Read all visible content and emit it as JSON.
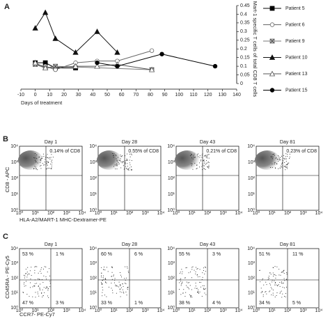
{
  "chart_data": {
    "type": "line",
    "x_label": "Days of treatment",
    "y_label": "% Mart-1 specific T cells of total CD8 T cells",
    "y_axis_side": "right",
    "xlim": [
      -10,
      140
    ],
    "xticks": [
      -10,
      0,
      10,
      20,
      30,
      40,
      50,
      60,
      70,
      80,
      90,
      100,
      110,
      120,
      130,
      140
    ],
    "ylim": [
      0,
      0.45
    ],
    "yticks": [
      0,
      0.05,
      0.1,
      0.15,
      0.2,
      0.25,
      0.3,
      0.35,
      0.4,
      0.45
    ],
    "series": [
      {
        "name": "Patient 5",
        "color": "#000000",
        "marker": "square-filled",
        "x": [
          0,
          7,
          14,
          28
        ],
        "values": [
          0.12,
          0.12,
          0.09,
          0.09
        ]
      },
      {
        "name": "Patient 6",
        "color": "#666666",
        "marker": "circle-open",
        "x": [
          0,
          7,
          14,
          28,
          43,
          57,
          81
        ],
        "values": [
          0.11,
          0.1,
          0.08,
          0.12,
          0.13,
          0.13,
          0.19
        ]
      },
      {
        "name": "Patient 9",
        "color": "#777777",
        "marker": "square-x",
        "x": [
          0,
          7,
          14,
          81
        ],
        "values": [
          0.11,
          0.09,
          0.1,
          0.08
        ]
      },
      {
        "name": "Patient 10",
        "color": "#111111",
        "marker": "triangle-filled",
        "x": [
          0,
          7,
          14,
          28,
          43,
          57
        ],
        "values": [
          0.32,
          0.41,
          0.26,
          0.18,
          0.3,
          0.18
        ]
      },
      {
        "name": "Patient 13",
        "color": "#555555",
        "marker": "triangle-open",
        "x": [
          0,
          7,
          28,
          43,
          57,
          81
        ],
        "values": [
          0.12,
          0.09,
          0.1,
          0.1,
          0.11,
          0.08
        ]
      },
      {
        "name": "Patient 15",
        "color": "#000000",
        "marker": "circle-filled",
        "x": [
          43,
          57,
          88,
          125
        ],
        "values": [
          0.12,
          0.1,
          0.17,
          0.1
        ]
      }
    ]
  },
  "panel_labels": [
    "A",
    "B",
    "C"
  ],
  "log_ticks": [
    "10⁰",
    "10¹",
    "10²",
    "10³",
    "10⁴"
  ],
  "dextramer": {
    "y_label": "CD8 - APC",
    "x_label": "HLA-A2/MART-1 MHC-Dextramer-PE",
    "plots": [
      {
        "title": "Day 1",
        "percent": "0.14% of CD8"
      },
      {
        "title": "Day 28",
        "percent": "0.55% of CD8"
      },
      {
        "title": "Day 43",
        "percent": "0.21% of CD8"
      },
      {
        "title": "Day 81",
        "percent": "0.23% of CD8"
      }
    ]
  },
  "phenotype": {
    "y_label": "CD45RA - PE-Cy5",
    "x_label": "CCR7- PE-Cy7",
    "plots": [
      {
        "title": "Day 1",
        "quadrants": [
          "53 %",
          "1 %",
          "47 %",
          "3 %"
        ]
      },
      {
        "title": "Day 28",
        "quadrants": [
          "60 %",
          "6 %",
          "33 %",
          "1 %"
        ]
      },
      {
        "title": "Day 43",
        "quadrants": [
          "55 %",
          "3 %",
          "38 %",
          "4 %"
        ]
      },
      {
        "title": "Day 81",
        "quadrants": [
          "51 %",
          "11 %",
          "34 %",
          "5 %"
        ]
      }
    ]
  }
}
